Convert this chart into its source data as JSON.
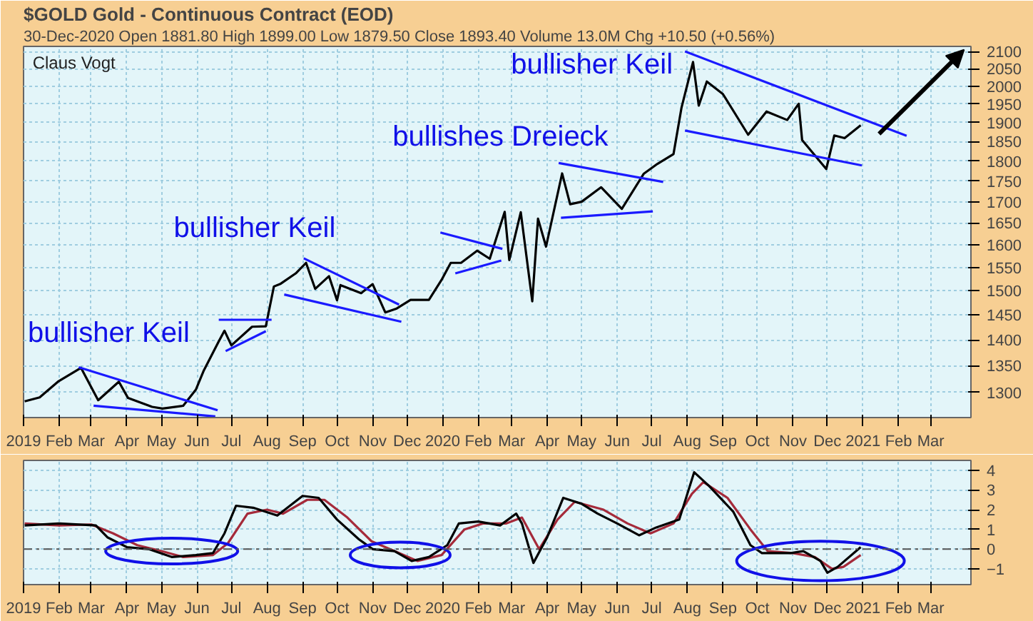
{
  "chart_data": [
    {
      "type": "line",
      "title": "$GOLD Gold - Continuous Contract (EOD)",
      "subtitle": "30-Dec-2020",
      "annotations": [
        "Open 1881.80  High 1899.00  Low 1879.50  Close 1893.40  Volume 13.0M  Chg +10.50 (+0.56%)",
        "Claus Vogt",
        "bullisher Keil",
        "bullisher Keil",
        "bullishes Dreieck",
        "bullisher Keil"
      ],
      "log": "y",
      "grid": true,
      "marker": "none",
      "xlim": [
        "2019-01-01",
        "2021-04-05"
      ],
      "ylim": [
        1255,
        2115
      ],
      "yticks": [
        1300,
        1350,
        1400,
        1450,
        1500,
        1550,
        1600,
        1650,
        1700,
        1750,
        1800,
        1850,
        1900,
        1950,
        2000,
        2050,
        2100
      ],
      "xticks": [
        {
          "value": "2019-01-01",
          "label": "2019"
        },
        {
          "value": "2019-02-01",
          "label": "Feb"
        },
        {
          "value": "2019-03-01",
          "label": "Mar"
        },
        {
          "value": "2019-04-01",
          "label": "Apr"
        },
        {
          "value": "2019-05-01",
          "label": "May"
        },
        {
          "value": "2019-06-01",
          "label": "Jun"
        },
        {
          "value": "2019-07-01",
          "label": "Jul"
        },
        {
          "value": "2019-08-01",
          "label": "Aug"
        },
        {
          "value": "2019-09-01",
          "label": "Sep"
        },
        {
          "value": "2019-10-01",
          "label": "Oct"
        },
        {
          "value": "2019-11-01",
          "label": "Nov"
        },
        {
          "value": "2019-12-01",
          "label": "Dec"
        },
        {
          "value": "2020-01-01",
          "label": "2020"
        },
        {
          "value": "2020-02-01",
          "label": "Feb"
        },
        {
          "value": "2020-03-01",
          "label": "Mar"
        },
        {
          "value": "2020-04-01",
          "label": "Apr"
        },
        {
          "value": "2020-05-01",
          "label": "May"
        },
        {
          "value": "2020-06-01",
          "label": "Jun"
        },
        {
          "value": "2020-07-01",
          "label": "Jul"
        },
        {
          "value": "2020-08-01",
          "label": "Aug"
        },
        {
          "value": "2020-09-01",
          "label": "Sep"
        },
        {
          "value": "2020-10-01",
          "label": "Oct"
        },
        {
          "value": "2020-11-01",
          "label": "Nov"
        },
        {
          "value": "2020-12-01",
          "label": "Dec"
        },
        {
          "value": "2021-01-01",
          "label": "2021"
        },
        {
          "value": "2021-02-01",
          "label": "Feb"
        },
        {
          "value": "2021-03-01",
          "label": "Mar"
        }
      ],
      "series": [
        {
          "color": "#000000",
          "x": [
            "2019-01-02",
            "2019-01-15",
            "2019-01-31",
            "2019-02-20",
            "2019-03-07",
            "2019-03-25",
            "2019-04-02",
            "2019-04-23",
            "2019-05-02",
            "2019-05-20",
            "2019-05-31",
            "2019-06-07",
            "2019-06-20",
            "2019-06-25",
            "2019-07-01",
            "2019-07-19",
            "2019-07-31",
            "2019-08-07",
            "2019-08-13",
            "2019-08-26",
            "2019-09-04",
            "2019-09-12",
            "2019-09-24",
            "2019-10-01",
            "2019-10-04",
            "2019-10-22",
            "2019-11-01",
            "2019-11-12",
            "2019-11-22",
            "2019-12-04",
            "2019-12-20",
            "2019-12-31",
            "2020-01-08",
            "2020-01-17",
            "2020-01-31",
            "2020-02-11",
            "2020-02-24",
            "2020-02-28",
            "2020-03-09",
            "2020-03-19",
            "2020-03-24",
            "2020-03-31",
            "2020-04-14",
            "2020-04-21",
            "2020-05-01",
            "2020-05-18",
            "2020-06-05",
            "2020-06-24",
            "2020-07-06",
            "2020-07-20",
            "2020-07-27",
            "2020-08-06",
            "2020-08-11",
            "2020-08-18",
            "2020-09-01",
            "2020-09-23",
            "2020-10-09",
            "2020-10-27",
            "2020-11-06",
            "2020-11-09",
            "2020-11-30",
            "2020-12-07",
            "2020-12-16",
            "2020-12-30"
          ],
          "values": [
            1284,
            1291,
            1320,
            1346,
            1286,
            1320,
            1290,
            1274,
            1271,
            1276,
            1305,
            1341,
            1397,
            1418,
            1389,
            1426,
            1427,
            1509,
            1515,
            1537,
            1560,
            1504,
            1531,
            1480,
            1512,
            1495,
            1514,
            1455,
            1463,
            1481,
            1481,
            1523,
            1560,
            1560,
            1587,
            1569,
            1676,
            1566,
            1675,
            1478,
            1660,
            1596,
            1769,
            1694,
            1700,
            1735,
            1683,
            1768,
            1793,
            1818,
            1941,
            2069,
            1946,
            2013,
            1978,
            1868,
            1930,
            1907,
            1951,
            1854,
            1780,
            1866,
            1859,
            1893
          ]
        },
        {
          "color": "#1a1aff",
          "x": [
            "2019-02-18",
            "2019-06-19"
          ],
          "values": [
            1347,
            1268
          ]
        },
        {
          "color": "#1a1aff",
          "x": [
            "2019-03-03",
            "2019-06-17"
          ],
          "values": [
            1276,
            1257
          ]
        },
        {
          "color": "#1a1aff",
          "x": [
            "2019-06-20",
            "2019-08-05"
          ],
          "values": [
            1440,
            1440
          ]
        },
        {
          "color": "#1a1aff",
          "x": [
            "2019-06-26",
            "2019-07-31"
          ],
          "values": [
            1378,
            1417
          ]
        },
        {
          "color": "#1a1aff",
          "x": [
            "2019-09-02",
            "2019-11-24"
          ],
          "values": [
            1570,
            1471
          ]
        },
        {
          "color": "#1a1aff",
          "x": [
            "2019-08-16",
            "2019-11-26"
          ],
          "values": [
            1492,
            1436
          ]
        },
        {
          "color": "#1a1aff",
          "x": [
            "2019-12-30",
            "2020-02-22"
          ],
          "values": [
            1628,
            1591
          ]
        },
        {
          "color": "#1a1aff",
          "x": [
            "2020-01-12",
            "2020-02-21"
          ],
          "values": [
            1537,
            1565
          ]
        },
        {
          "color": "#1a1aff",
          "x": [
            "2020-04-11",
            "2020-07-11"
          ],
          "values": [
            1795,
            1748
          ]
        },
        {
          "color": "#1a1aff",
          "x": [
            "2020-04-13",
            "2020-07-02"
          ],
          "values": [
            1662,
            1677
          ]
        },
        {
          "color": "#1a1aff",
          "x": [
            "2020-07-30",
            "2021-02-08"
          ],
          "values": [
            2100,
            1865
          ]
        },
        {
          "color": "#1a1aff",
          "x": [
            "2020-07-30",
            "2020-12-31"
          ],
          "values": [
            1879,
            1789
          ]
        }
      ]
    },
    {
      "type": "line",
      "grid": true,
      "marker": "none",
      "xlim": [
        "2019-01-01",
        "2021-04-05"
      ],
      "ylim": [
        -1.8,
        4.5
      ],
      "yticks": [
        -1,
        0,
        1,
        2,
        3,
        4
      ],
      "xticks": [
        {
          "value": "2019-01-01",
          "label": "2019"
        },
        {
          "value": "2019-02-01",
          "label": "Feb"
        },
        {
          "value": "2019-03-01",
          "label": "Mar"
        },
        {
          "value": "2019-04-01",
          "label": "Apr"
        },
        {
          "value": "2019-05-01",
          "label": "May"
        },
        {
          "value": "2019-06-01",
          "label": "Jun"
        },
        {
          "value": "2019-07-01",
          "label": "Jul"
        },
        {
          "value": "2019-08-01",
          "label": "Aug"
        },
        {
          "value": "2019-09-01",
          "label": "Sep"
        },
        {
          "value": "2019-10-01",
          "label": "Oct"
        },
        {
          "value": "2019-11-01",
          "label": "Nov"
        },
        {
          "value": "2019-12-01",
          "label": "Dec"
        },
        {
          "value": "2020-01-01",
          "label": "2020"
        },
        {
          "value": "2020-02-01",
          "label": "Feb"
        },
        {
          "value": "2020-03-01",
          "label": "Mar"
        },
        {
          "value": "2020-04-01",
          "label": "Apr"
        },
        {
          "value": "2020-05-01",
          "label": "May"
        },
        {
          "value": "2020-06-01",
          "label": "Jun"
        },
        {
          "value": "2020-07-01",
          "label": "Jul"
        },
        {
          "value": "2020-08-01",
          "label": "Aug"
        },
        {
          "value": "2020-09-01",
          "label": "Sep"
        },
        {
          "value": "2020-10-01",
          "label": "Oct"
        },
        {
          "value": "2020-11-01",
          "label": "Nov"
        },
        {
          "value": "2020-12-01",
          "label": "Dec"
        },
        {
          "value": "2021-01-01",
          "label": "2021"
        },
        {
          "value": "2021-02-01",
          "label": "Feb"
        },
        {
          "value": "2021-03-01",
          "label": "Mar"
        }
      ],
      "ref_lines": [
        {
          "axis": "y",
          "value": 0,
          "color": "#555555",
          "line_style": "dashed"
        }
      ],
      "series": [
        {
          "color": "#a52a3a",
          "x": [
            "2019-01-02",
            "2019-02-01",
            "2019-03-01",
            "2019-03-20",
            "2019-04-10",
            "2019-05-01",
            "2019-05-20",
            "2019-06-15",
            "2019-06-28",
            "2019-07-15",
            "2019-08-01",
            "2019-08-15",
            "2019-09-05",
            "2019-09-20",
            "2019-10-10",
            "2019-10-31",
            "2019-11-20",
            "2019-12-10",
            "2019-12-31",
            "2020-01-20",
            "2020-02-05",
            "2020-02-25",
            "2020-03-10",
            "2020-03-25",
            "2020-04-10",
            "2020-04-25",
            "2020-05-20",
            "2020-06-10",
            "2020-06-30",
            "2020-07-20",
            "2020-08-05",
            "2020-08-15",
            "2020-09-05",
            "2020-09-25",
            "2020-10-10",
            "2020-11-01",
            "2020-11-20",
            "2020-12-05",
            "2020-12-15",
            "2020-12-30"
          ],
          "values": [
            1.3,
            1.2,
            1.25,
            0.8,
            0.2,
            -0.1,
            -0.4,
            -0.3,
            0.3,
            1.8,
            2.0,
            1.8,
            2.5,
            2.5,
            1.6,
            0.4,
            -0.1,
            -0.6,
            -0.3,
            1.0,
            1.3,
            1.3,
            1.6,
            0.0,
            1.5,
            2.4,
            2.0,
            1.3,
            0.8,
            1.3,
            2.8,
            3.4,
            2.6,
            1.0,
            -0.1,
            -0.2,
            -0.4,
            -1.0,
            -0.9,
            -0.3
          ]
        },
        {
          "color": "#000000",
          "x": [
            "2019-01-02",
            "2019-02-01",
            "2019-03-05",
            "2019-03-15",
            "2019-04-01",
            "2019-04-20",
            "2019-05-10",
            "2019-05-31",
            "2019-06-15",
            "2019-06-25",
            "2019-07-05",
            "2019-07-20",
            "2019-08-10",
            "2019-09-01",
            "2019-09-15",
            "2019-10-01",
            "2019-10-20",
            "2019-11-01",
            "2019-11-20",
            "2019-12-05",
            "2019-12-20",
            "2020-01-05",
            "2020-01-15",
            "2020-02-01",
            "2020-02-20",
            "2020-03-05",
            "2020-03-10",
            "2020-03-20",
            "2020-04-01",
            "2020-04-15",
            "2020-05-01",
            "2020-05-15",
            "2020-06-01",
            "2020-06-20",
            "2020-07-05",
            "2020-07-25",
            "2020-08-07",
            "2020-08-20",
            "2020-09-10",
            "2020-09-25",
            "2020-10-05",
            "2020-10-30",
            "2020-11-10",
            "2020-11-25",
            "2020-12-01",
            "2020-12-10",
            "2020-12-30"
          ],
          "values": [
            1.2,
            1.3,
            1.2,
            0.6,
            0.1,
            0,
            -0.4,
            -0.3,
            -0.2,
            0.8,
            2.2,
            2.1,
            1.7,
            2.7,
            2.6,
            1.5,
            0.5,
            0,
            -0.1,
            -0.6,
            -0.4,
            0.2,
            1.3,
            1.4,
            1.2,
            1.8,
            1.3,
            -0.7,
            0.6,
            2.6,
            2.3,
            1.8,
            1.3,
            0.7,
            1.1,
            1.5,
            3.9,
            3.2,
            1.9,
            0.2,
            -0.2,
            -0.2,
            -0.1,
            -0.6,
            -1.2,
            -0.9,
            0.1
          ]
        }
      ]
    }
  ]
}
